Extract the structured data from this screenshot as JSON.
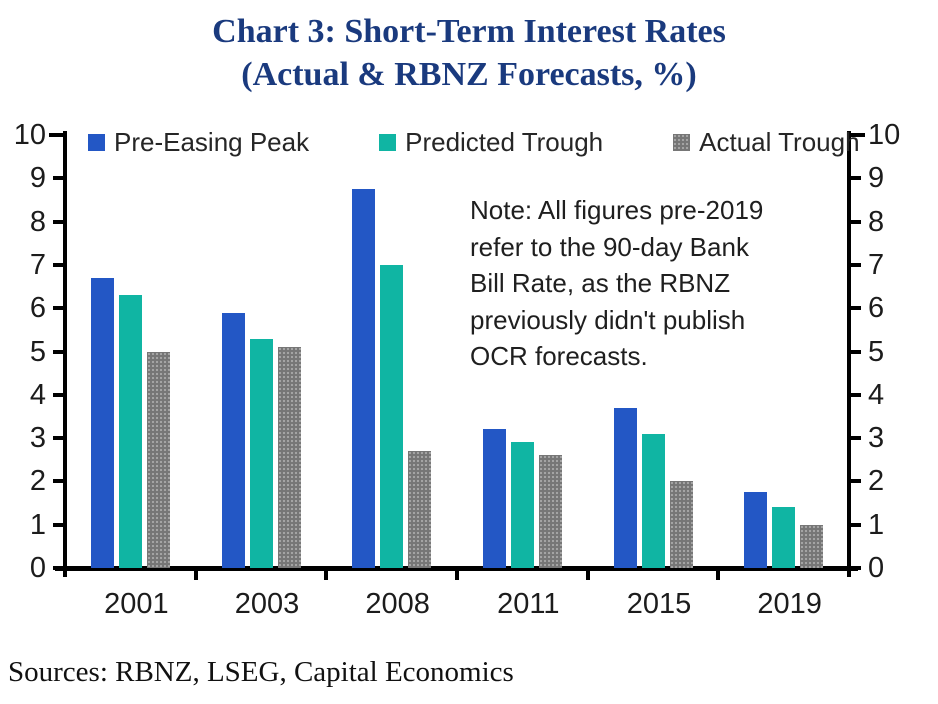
{
  "title": {
    "line1": "Chart 3: Short-Term Interest Rates",
    "line2": "(Actual & RBNZ Forecasts, %)"
  },
  "note": {
    "lines": [
      "Note: All figures pre-2019",
      "refer to the 90-day Bank",
      "Bill Rate, as the RBNZ",
      "previously didn't publish",
      "OCR forecasts."
    ]
  },
  "sources": "Sources: RBNZ, LSEG, Capital Economics",
  "colors": {
    "title_navy": "#1a3a7e",
    "axis_black": "#000000",
    "blue": "#2357c5",
    "teal": "#10b5a3",
    "gray": "#767676"
  },
  "chart_data": {
    "type": "bar",
    "title": "Chart 3: Short-Term Interest Rates (Actual & RBNZ Forecasts, %)",
    "categories": [
      "2001",
      "2003",
      "2008",
      "2011",
      "2015",
      "2019"
    ],
    "series": [
      {
        "name": "Pre-Easing Peak",
        "color": "#2357c5",
        "textured": false,
        "values": [
          6.7,
          5.9,
          8.75,
          3.2,
          3.7,
          1.75
        ]
      },
      {
        "name": "Predicted Trough",
        "color": "#10b5a3",
        "textured": false,
        "values": [
          6.3,
          5.3,
          7.0,
          2.9,
          3.1,
          1.4
        ]
      },
      {
        "name": "Actual Trough",
        "color": "#767676",
        "textured": true,
        "values": [
          5.0,
          5.1,
          2.7,
          2.6,
          2.0,
          1.0
        ]
      }
    ],
    "xlabel": "",
    "ylabel": "",
    "ylim": [
      0,
      10
    ],
    "y_ticks": [
      0,
      1,
      2,
      3,
      4,
      5,
      6,
      7,
      8,
      9,
      10
    ],
    "y_axis_sides": "both",
    "grid": false,
    "legend_position": "top-left inside plot"
  }
}
